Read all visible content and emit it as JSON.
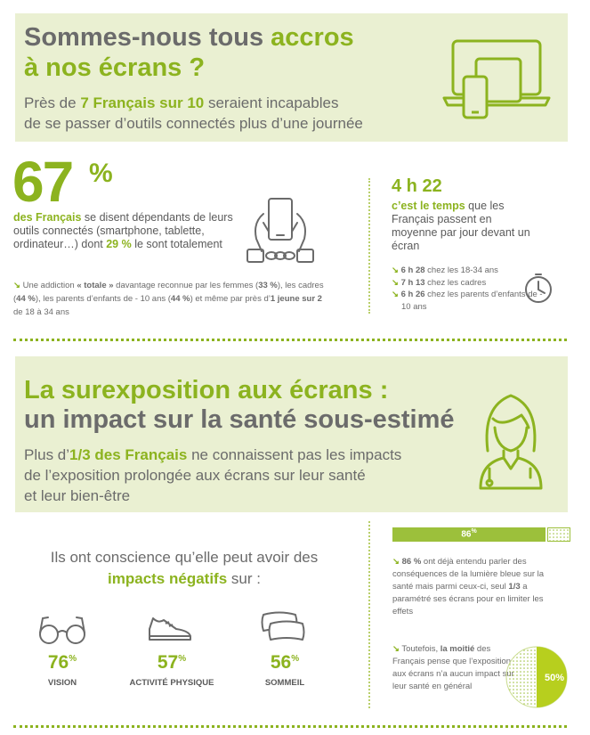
{
  "section1": {
    "title_part1": "Sommes-nous tous ",
    "title_part2": "accros",
    "title_line2": "à nos écrans ?",
    "sub_pre": "Près de ",
    "sub_bold": "7 Français sur 10",
    "sub_post": " seraient incapables",
    "sub_line2": "de se passer d’outils connectés plus d’une journée",
    "icon": "devices-icon"
  },
  "stat67": {
    "value": "67",
    "percent": "%",
    "bold_lead": "des Français",
    "text1": " se disent dépendants de leurs outils connectés (smartphone, tablette, ordinateur…) dont ",
    "bold_29": "29 %",
    "text2": " le sont totalement",
    "note_pre": " Une addiction ",
    "note_bold1": "« totale »",
    "note_mid1": " davantage reconnue par les femmes (",
    "note_b2": "33 %",
    "note_mid2": "), les cadres (",
    "note_b3": "44 %",
    "note_mid3": "), les parents d’enfants de - 10 ans (",
    "note_b4": "44 %",
    "note_mid4": ") et même par près d’",
    "note_b5": "1 jeune sur 2",
    "note_end": " de 18 à 34 ans",
    "icon": "chained-hands-phone-icon"
  },
  "time": {
    "value": "4 h 22",
    "bold_lead": "c’est le temps",
    "text": " que les Français passent en moyenne par jour devant un écran",
    "items": [
      {
        "bold": "6 h 28",
        "text": " chez les 18-34 ans"
      },
      {
        "bold": "7 h 13",
        "text": " chez les cadres"
      },
      {
        "bold": "6 h 26",
        "text": " chez les parents d’enfants de - 10 ans"
      }
    ],
    "icon": "clock-icon"
  },
  "section2": {
    "title_line1": "La surexposition aux écrans :",
    "title_line2": "un impact sur la santé sous-estimé",
    "sub_pre": "Plus d’",
    "sub_bold": "1/3 des Français",
    "sub_post": " ne connaissent pas les impacts",
    "sub_line2": "de l’exposition prolongée aux écrans sur leur santé",
    "sub_line3": "et leur bien-être",
    "icon": "doctor-icon"
  },
  "aware": {
    "line1": "Ils ont conscience qu’elle peut avoir des",
    "bold": "impacts négatifs",
    "line2_post": " sur :"
  },
  "impacts": [
    {
      "value": "76",
      "unit": "%",
      "label": "VISION",
      "icon": "glasses-icon"
    },
    {
      "value": "57",
      "unit": "%",
      "label": "ACTIVITÉ PHYSIQUE",
      "icon": "sneaker-icon"
    },
    {
      "value": "56",
      "unit": "%",
      "label": "SOMMEIL",
      "icon": "pillows-icon"
    }
  ],
  "blue_light": {
    "bar_value": 86,
    "bar_label": "86",
    "bar_unit": "%",
    "b1": "86 %",
    "t1": " ont déjà entendu parler des conséquences de la lumière bleue sur la santé mais parmi ceux-ci, seul ",
    "b2": "1/3",
    "t2": " a paramétré ses écrans pour en limiter les effets"
  },
  "half": {
    "pre": " Toutefois, ",
    "bold": "la moitié",
    "text": " des Français pense que l’exposition aux écrans n’a aucun impact sur leur santé en général",
    "pie_value": 50,
    "pie_label": "50%"
  },
  "colors": {
    "accent": "#8cb31f",
    "banner": "#eaf0d2",
    "text": "#6b6b6b"
  }
}
